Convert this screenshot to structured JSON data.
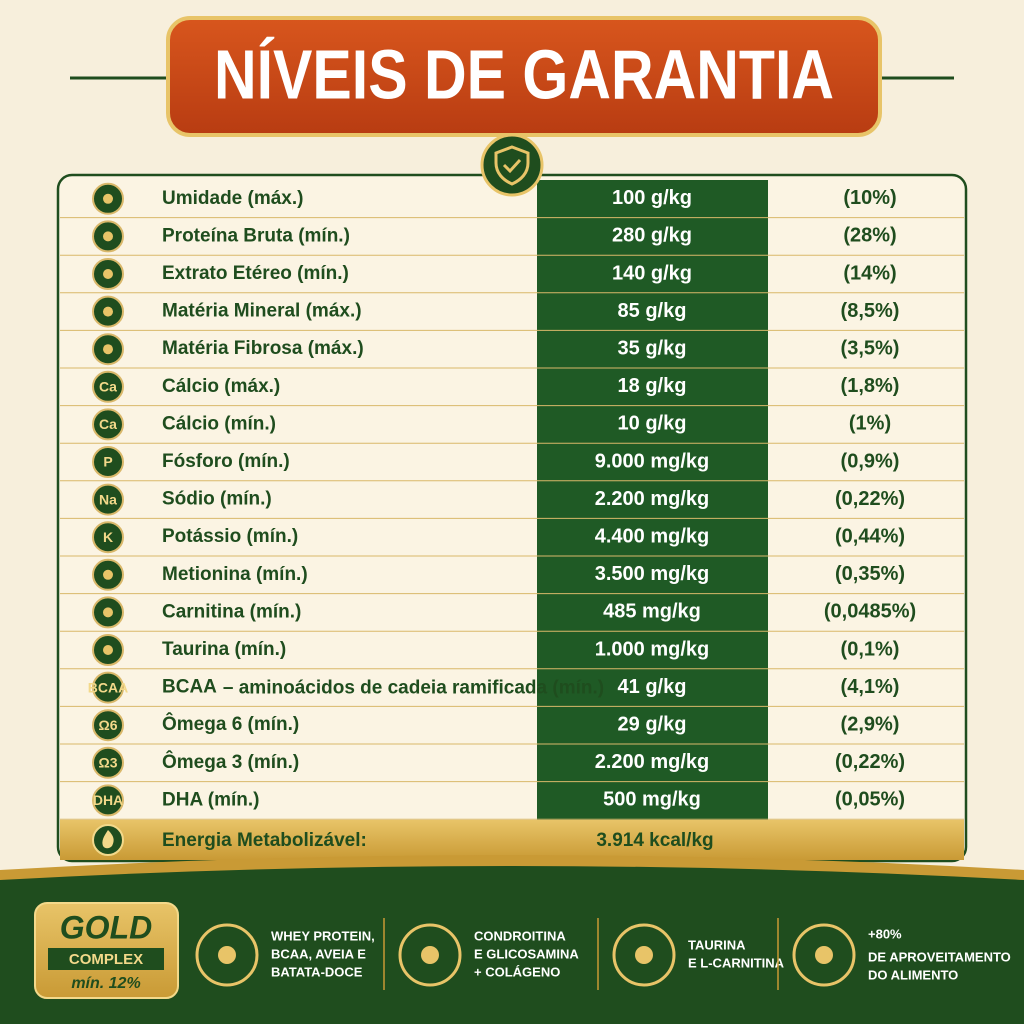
{
  "title": "NÍVEIS DE GARANTIA",
  "table": {
    "rows": [
      {
        "name": "Umidade (máx.)",
        "amount": "100 g/kg",
        "percent": "(10%)"
      },
      {
        "name": "Proteína Bruta (mín.)",
        "amount": "280 g/kg",
        "percent": "(28%)"
      },
      {
        "name": "Extrato Etéreo (mín.)",
        "amount": "140 g/kg",
        "percent": "(14%)"
      },
      {
        "name": "Matéria Mineral (máx.)",
        "amount": "85 g/kg",
        "percent": "(8,5%)"
      },
      {
        "name": "Matéria Fibrosa (máx.)",
        "amount": "35 g/kg",
        "percent": "(3,5%)"
      },
      {
        "icon": "Ca",
        "name": "Cálcio (máx.)",
        "amount": "18 g/kg",
        "percent": "(1,8%)"
      },
      {
        "icon": "Ca",
        "name": "Cálcio (mín.)",
        "amount": "10 g/kg",
        "percent": "(1%)"
      },
      {
        "icon": "P",
        "name": "Fósforo (mín.)",
        "amount": "9.000 mg/kg",
        "percent": "(0,9%)"
      },
      {
        "icon": "Na",
        "name": "Sódio (mín.)",
        "amount": "2.200 mg/kg",
        "percent": "(0,22%)"
      },
      {
        "icon": "K",
        "name": "Potássio (mín.)",
        "amount": "4.400 mg/kg",
        "percent": "(0,44%)"
      },
      {
        "name": "Metionina (mín.)",
        "amount": "3.500 mg/kg",
        "percent": "(0,35%)"
      },
      {
        "name": "Carnitina (mín.)",
        "amount": "485 mg/kg",
        "percent": "(0,0485%)"
      },
      {
        "name": "Taurina (mín.)",
        "amount": "1.000 mg/kg",
        "percent": "(0,1%)"
      },
      {
        "icon": "BCAA",
        "name": "BCAA",
        "detail": "– aminoácidos de cadeia ramificada (mín.)",
        "amount": "41 g/kg",
        "percent": "(4,1%)"
      },
      {
        "icon": "Ω6",
        "name": "Ômega 6 (mín.)",
        "amount": "29 g/kg",
        "percent": "(2,9%)"
      },
      {
        "icon": "Ω3",
        "name": "Ômega 3 (mín.)",
        "amount": "2.200 mg/kg",
        "percent": "(0,22%)"
      },
      {
        "icon": "DHA",
        "name": "DHA (mín.)",
        "amount": "500 mg/kg",
        "percent": "(0,05%)"
      }
    ],
    "energy": {
      "name": "Energia Metabolizável:",
      "amount": "3.914 kcal/kg"
    }
  },
  "footer": {
    "badge": {
      "title": "GOLD",
      "subtitle": "COMPLEX",
      "note": "mín. 12%"
    },
    "features": [
      {
        "lines": [
          "WHEY PROTEIN,",
          "BCAA, AVEIA E",
          "BATATA-DOCE"
        ]
      },
      {
        "lines": [
          "CONDROITINA",
          "E GLICOSAMINA",
          "+ COLÁGENO"
        ]
      },
      {
        "lines": [
          "TAURINA",
          "E L-CARNITINA"
        ]
      },
      {
        "highlight": "+80%",
        "lines": [
          "DE APROVEITAMENTO",
          "DO ALIMENTO"
        ]
      }
    ]
  }
}
